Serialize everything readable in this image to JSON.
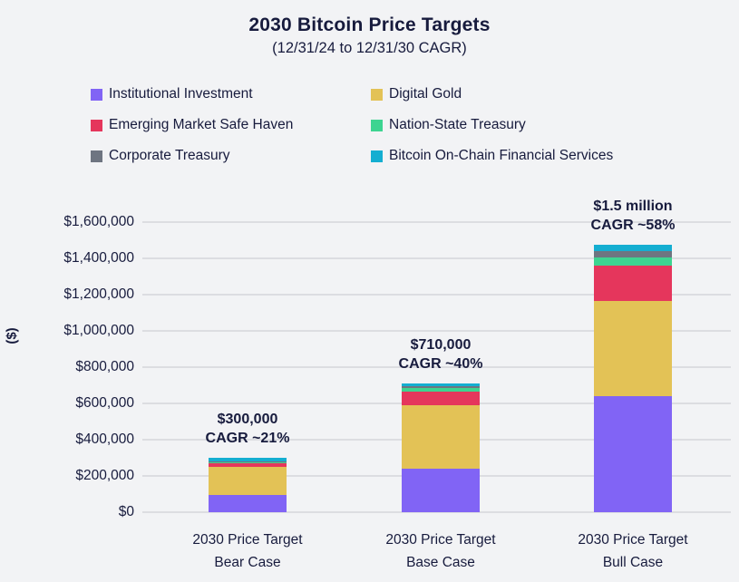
{
  "chart_data": {
    "type": "bar",
    "stacked": true,
    "title": "2030 Bitcoin Price Targets",
    "subtitle": "(12/31/24 to 12/31/30 CAGR)",
    "ylabel": "($)",
    "ylim": [
      0,
      1600000
    ],
    "ytick_step": 200000,
    "ytick_labels": [
      "$0",
      "$200,000",
      "$400,000",
      "$600,000",
      "$800,000",
      "$1,000,000",
      "$1,200,000",
      "$1,400,000",
      "$1,600,000"
    ],
    "grid": true,
    "legend_position": "top",
    "categories": [
      {
        "line1": "2030 Price Target",
        "line2": "Bear Case"
      },
      {
        "line1": "2030 Price Target",
        "line2": "Base Case"
      },
      {
        "line1": "2030 Price Target",
        "line2": "Bull Case"
      }
    ],
    "annotations": [
      {
        "line1": "$300,000",
        "line2": "CAGR ~21%"
      },
      {
        "line1": "$710,000",
        "line2": "CAGR ~40%"
      },
      {
        "line1": "$1.5 million",
        "line2": "CAGR ~58%"
      }
    ],
    "series": [
      {
        "name": "Institutional Investment",
        "color": "#8164f5",
        "values": [
          95000,
          240000,
          640000
        ]
      },
      {
        "name": "Digital Gold",
        "color": "#e3c256",
        "values": [
          155000,
          350000,
          525000
        ]
      },
      {
        "name": "Emerging Market Safe Haven",
        "color": "#e5365c",
        "values": [
          20000,
          75000,
          195000
        ]
      },
      {
        "name": "Nation-State Treasury",
        "color": "#3dd491",
        "values": [
          5000,
          20000,
          45000
        ]
      },
      {
        "name": "Corporate Treasury",
        "color": "#6e7581",
        "values": [
          5000,
          10000,
          35000
        ]
      },
      {
        "name": "Bitcoin On-Chain Financial Services",
        "color": "#14aed1",
        "values": [
          20000,
          15000,
          35000
        ]
      }
    ]
  },
  "colors": {
    "background": "#f2f3f5",
    "gridline": "#dcdde1",
    "text": "#171b3d"
  }
}
